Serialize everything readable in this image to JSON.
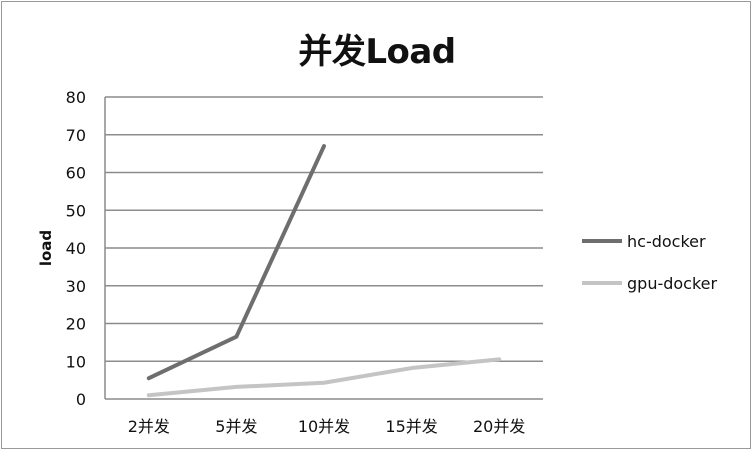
{
  "chart_data": {
    "type": "line",
    "title": "并发Load",
    "xlabel": "",
    "ylabel": "load",
    "categories": [
      "2并发",
      "5并发",
      "10并发",
      "15并发",
      "20并发"
    ],
    "ylim": [
      0,
      80
    ],
    "yticks": [
      0,
      10,
      20,
      30,
      40,
      50,
      60,
      70,
      80
    ],
    "grid": true,
    "legend_position": "right",
    "series": [
      {
        "name": "hc-docker",
        "values": [
          5.5,
          16.5,
          67,
          null,
          null
        ],
        "color": "#6e6e6e"
      },
      {
        "name": "gpu-docker",
        "values": [
          1,
          3.2,
          4.3,
          8.2,
          10.5
        ],
        "color": "#c4c4c4"
      }
    ]
  }
}
